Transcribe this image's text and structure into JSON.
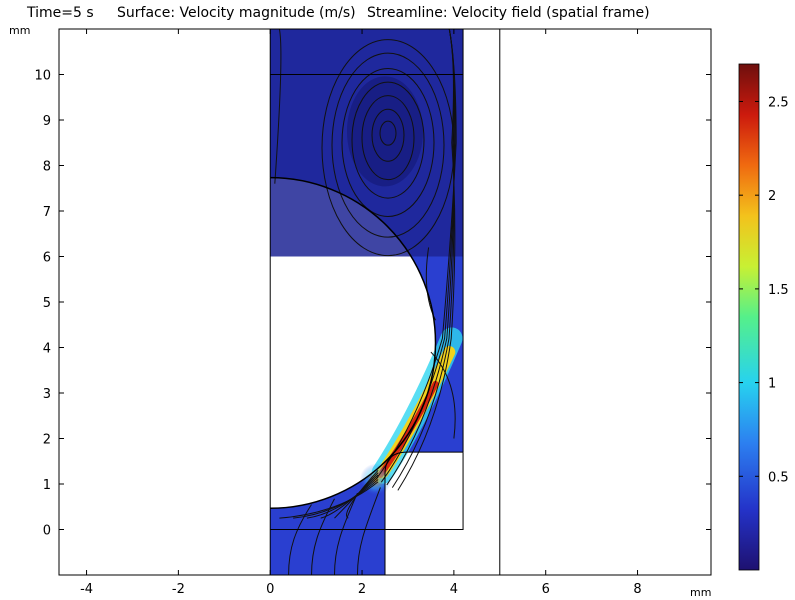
{
  "title": {
    "time": "Time=5 s",
    "surface": "Surface: Velocity magnitude (m/s)",
    "streamline": "Streamline: Velocity field (spatial frame)"
  },
  "chart_data": {
    "type": "heatmap",
    "colormap": "rainbow (dark blue → cyan → green → yellow → red → dark red)",
    "x_unit": "mm",
    "y_unit": "mm",
    "xlim": [
      -4.6,
      9.6
    ],
    "ylim": [
      -1.0,
      11.0
    ],
    "x_ticks": [
      "-4",
      "-2",
      "0",
      "2",
      "4",
      "6",
      "8"
    ],
    "x_tick_values": [
      -4,
      -2,
      0,
      2,
      4,
      6,
      8
    ],
    "y_ticks": [
      "0",
      "1",
      "2",
      "3",
      "4",
      "5",
      "6",
      "7",
      "8",
      "9",
      "10"
    ],
    "y_tick_values": [
      0,
      1,
      2,
      3,
      4,
      5,
      6,
      7,
      8,
      9,
      10
    ],
    "colorbar": {
      "min": 0.0,
      "max": 2.7,
      "ticks": [
        "0.5",
        "1",
        "1.5",
        "2",
        "2.5"
      ],
      "tick_values": [
        0.5,
        1.0,
        1.5,
        2.0,
        2.5
      ]
    },
    "geometry": {
      "channel_left_x": 0,
      "channel_right_x": 4.2,
      "channel_top_y": 11.0,
      "sphere_center": [
        0,
        4.1
      ],
      "sphere_radius": 3.6,
      "ledge_top_y": 1.7,
      "ledge_inner_x": 2.5,
      "outlet_width_x": [
        0,
        2.5
      ],
      "horizontal_line_y": 10.0,
      "wall_x": 5.0
    },
    "velocity_samples": [
      {
        "x": 2.5,
        "y": 1.4,
        "value": 2.6
      },
      {
        "x": 3.4,
        "y": 2.8,
        "value": 2.1
      },
      {
        "x": 3.8,
        "y": 3.8,
        "value": 1.0
      },
      {
        "x": 2.6,
        "y": 8.7,
        "value": 0.1
      },
      {
        "x": 1.5,
        "y": -0.5,
        "value": 0.3
      }
    ],
    "vortex_center": [
      2.5,
      8.75
    ]
  }
}
